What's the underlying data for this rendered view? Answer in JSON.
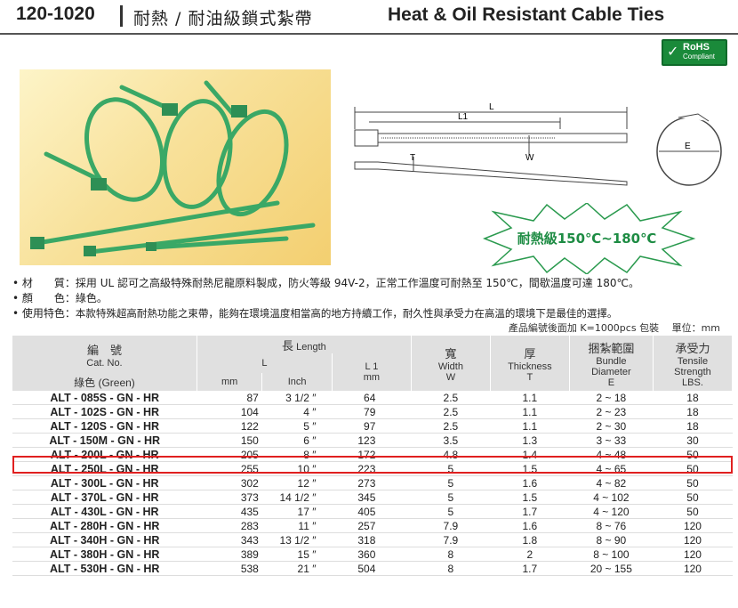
{
  "header": {
    "code": "120-1020",
    "title_zh": "耐熱 / 耐油級鎖式紮帶",
    "title_en": "Heat & Oil Resistant Cable Ties"
  },
  "rohs": {
    "label": "RoHS",
    "sub": "Compliant"
  },
  "diagram": {
    "L": "L",
    "L1": "L1",
    "T": "T",
    "W": "W",
    "E": "E"
  },
  "burst": {
    "text": "耐熱級150℃~180℃"
  },
  "specs": [
    {
      "bullet": "•",
      "label": "材　　質：",
      "text": "採用 UL 認可之高級特殊耐熱尼龍原料製成，防火等級 94V-2，正常工作溫度可耐熱至 150℃，間歇溫度可達 180℃。"
    },
    {
      "bullet": "•",
      "label": "顏　　色：",
      "text": "綠色。"
    },
    {
      "bullet": "•",
      "label": "使用特色：",
      "text": "本款特殊超高耐熱功能之束帶，能夠在環境溫度相當高的地方持續工作，耐久性與承受力在高溫的環境下是最佳的選擇。"
    }
  ],
  "note": "產品編號後面加 K=1000pcs 包裝　 單位：mm",
  "table": {
    "h_cat_zh": "編　號",
    "h_cat_en": "Cat. No.",
    "h_cat_color": "綠色 (Green)",
    "h_len_zh": "長",
    "h_len_en": "Length",
    "h_L": "L",
    "h_L1": "L 1",
    "h_mm": "mm",
    "h_inch": "Inch",
    "h_mm2": "mm",
    "h_w_zh": "寬",
    "h_w_en": "Width",
    "h_w_sym": "W",
    "h_t_zh": "厚",
    "h_t_en": "Thickness",
    "h_t_sym": "T",
    "h_d_zh": "捆紮範圍",
    "h_d_en1": "Bundle",
    "h_d_en2": "Diameter",
    "h_d_sym": "E",
    "h_s_zh": "承受力",
    "h_s_en1": "Tensile",
    "h_s_en2": "Strength",
    "h_s_sym": "LBS.",
    "rows": [
      {
        "cat": "ALT - 085S - GN - HR",
        "mm": "87",
        "inch": "3 1/2 ″",
        "l1": "64",
        "w": "2.5",
        "t": "1.1",
        "d": "2 ~ 18",
        "s": "18"
      },
      {
        "cat": "ALT - 102S - GN - HR",
        "mm": "104",
        "inch": "4 ″",
        "l1": "79",
        "w": "2.5",
        "t": "1.1",
        "d": "2 ~ 23",
        "s": "18"
      },
      {
        "cat": "ALT - 120S - GN - HR",
        "mm": "122",
        "inch": "5 ″",
        "l1": "97",
        "w": "2.5",
        "t": "1.1",
        "d": "2 ~ 30",
        "s": "18"
      },
      {
        "cat": "ALT - 150M - GN - HR",
        "mm": "150",
        "inch": "6 ″",
        "l1": "123",
        "w": "3.5",
        "t": "1.3",
        "d": "3 ~ 33",
        "s": "30"
      },
      {
        "cat": "ALT - 200L - GN - HR",
        "mm": "205",
        "inch": "8 ″",
        "l1": "172",
        "w": "4.8",
        "t": "1.4",
        "d": "4 ~ 48",
        "s": "50"
      },
      {
        "cat": "ALT - 250L - GN - HR",
        "mm": "255",
        "inch": "10 ″",
        "l1": "223",
        "w": "5",
        "t": "1.5",
        "d": "4 ~ 65",
        "s": "50"
      },
      {
        "cat": "ALT - 300L - GN - HR",
        "mm": "302",
        "inch": "12 ″",
        "l1": "273",
        "w": "5",
        "t": "1.6",
        "d": "4 ~ 82",
        "s": "50"
      },
      {
        "cat": "ALT - 370L - GN - HR",
        "mm": "373",
        "inch": "14 1/2 ″",
        "l1": "345",
        "w": "5",
        "t": "1.5",
        "d": "4 ~ 102",
        "s": "50"
      },
      {
        "cat": "ALT - 430L - GN - HR",
        "mm": "435",
        "inch": "17 ″",
        "l1": "405",
        "w": "5",
        "t": "1.7",
        "d": "4 ~ 120",
        "s": "50"
      },
      {
        "cat": "ALT - 280H - GN - HR",
        "mm": "283",
        "inch": "11 ″",
        "l1": "257",
        "w": "7.9",
        "t": "1.6",
        "d": "8 ~ 76",
        "s": "120"
      },
      {
        "cat": "ALT - 340H - GN - HR",
        "mm": "343",
        "inch": "13 1/2 ″",
        "l1": "318",
        "w": "7.9",
        "t": "1.8",
        "d": "8 ~ 90",
        "s": "120"
      },
      {
        "cat": "ALT - 380H - GN - HR",
        "mm": "389",
        "inch": "15 ″",
        "l1": "360",
        "w": "8",
        "t": "2",
        "d": "8 ~ 100",
        "s": "120"
      },
      {
        "cat": "ALT - 530H - GN - HR",
        "mm": "538",
        "inch": "21 ″",
        "l1": "504",
        "w": "8",
        "t": "1.7",
        "d": "20 ~ 155",
        "s": "120"
      }
    ],
    "highlight_row": 4
  },
  "colors": {
    "tie_green": "#3fae6a",
    "highlight": "#e02020",
    "header_bg": "#e0e0e0",
    "rohs_green": "#1a8a3a"
  }
}
